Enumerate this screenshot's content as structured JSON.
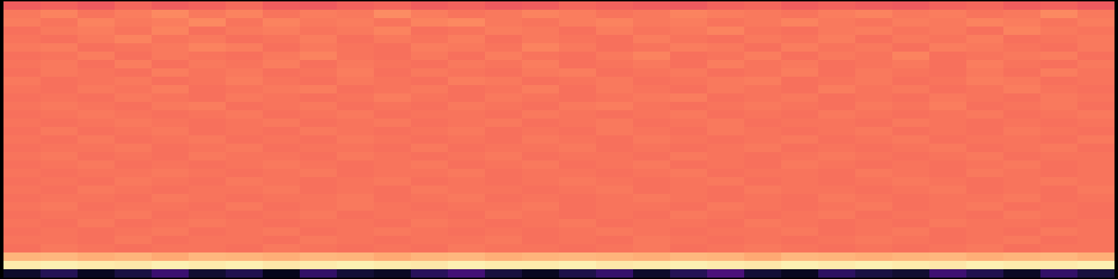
{
  "chart_data": {
    "type": "heatmap",
    "color": "magma",
    "zlim": [
      0,
      1
    ],
    "tick_labels": false,
    "cells": [
      [
        0.66,
        0.67,
        0.65,
        0.68,
        0.66,
        0.67,
        0.69,
        0.66,
        0.65,
        0.67,
        0.68,
        0.66,
        0.67,
        0.65,
        0.66,
        0.68,
        0.67,
        0.66,
        0.65,
        0.67,
        0.68,
        0.66,
        0.67,
        0.66,
        0.65,
        0.67,
        0.68,
        0.66,
        0.67,
        0.65
      ],
      [
        0.72,
        0.74,
        0.71,
        0.73,
        0.75,
        0.72,
        0.74,
        0.71,
        0.73,
        0.72,
        0.76,
        0.73,
        0.71,
        0.72,
        0.74,
        0.73,
        0.71,
        0.72,
        0.74,
        0.73,
        0.72,
        0.71,
        0.73,
        0.74,
        0.72,
        0.73,
        0.71,
        0.72,
        0.75,
        0.72
      ],
      [
        0.73,
        0.71,
        0.74,
        0.72,
        0.73,
        0.75,
        0.71,
        0.74,
        0.72,
        0.73,
        0.71,
        0.74,
        0.75,
        0.72,
        0.71,
        0.73,
        0.74,
        0.72,
        0.73,
        0.71,
        0.72,
        0.74,
        0.72,
        0.71,
        0.73,
        0.72,
        0.74,
        0.73,
        0.71,
        0.73
      ],
      [
        0.7,
        0.72,
        0.73,
        0.71,
        0.74,
        0.7,
        0.72,
        0.73,
        0.71,
        0.72,
        0.74,
        0.7,
        0.71,
        0.73,
        0.72,
        0.7,
        0.73,
        0.71,
        0.72,
        0.74,
        0.71,
        0.7,
        0.72,
        0.73,
        0.71,
        0.72,
        0.7,
        0.74,
        0.72,
        0.71
      ],
      [
        0.71,
        0.7,
        0.72,
        0.74,
        0.71,
        0.72,
        0.7,
        0.71,
        0.73,
        0.7,
        0.72,
        0.71,
        0.73,
        0.7,
        0.72,
        0.71,
        0.7,
        0.73,
        0.71,
        0.7,
        0.72,
        0.71,
        0.73,
        0.7,
        0.72,
        0.71,
        0.73,
        0.7,
        0.71,
        0.72
      ],
      [
        0.72,
        0.73,
        0.7,
        0.71,
        0.72,
        0.74,
        0.73,
        0.7,
        0.72,
        0.71,
        0.7,
        0.73,
        0.72,
        0.71,
        0.74,
        0.72,
        0.7,
        0.71,
        0.73,
        0.72,
        0.7,
        0.73,
        0.71,
        0.72,
        0.7,
        0.73,
        0.72,
        0.71,
        0.7,
        0.72
      ],
      [
        0.7,
        0.71,
        0.73,
        0.7,
        0.72,
        0.71,
        0.7,
        0.72,
        0.74,
        0.71,
        0.7,
        0.72,
        0.7,
        0.73,
        0.71,
        0.7,
        0.72,
        0.74,
        0.7,
        0.71,
        0.73,
        0.7,
        0.72,
        0.71,
        0.74,
        0.7,
        0.71,
        0.72,
        0.73,
        0.7
      ],
      [
        0.71,
        0.72,
        0.7,
        0.73,
        0.7,
        0.72,
        0.71,
        0.73,
        0.7,
        0.72,
        0.71,
        0.7,
        0.72,
        0.71,
        0.73,
        0.7,
        0.71,
        0.72,
        0.7,
        0.73,
        0.71,
        0.72,
        0.7,
        0.71,
        0.72,
        0.7,
        0.73,
        0.71,
        0.7,
        0.72
      ],
      [
        0.7,
        0.72,
        0.71,
        0.7,
        0.73,
        0.71,
        0.72,
        0.7,
        0.71,
        0.73,
        0.7,
        0.72,
        0.71,
        0.7,
        0.72,
        0.73,
        0.7,
        0.71,
        0.72,
        0.7,
        0.71,
        0.73,
        0.7,
        0.72,
        0.71,
        0.7,
        0.72,
        0.7,
        0.73,
        0.71
      ],
      [
        0.72,
        0.7,
        0.71,
        0.72,
        0.7,
        0.71,
        0.73,
        0.71,
        0.7,
        0.72,
        0.71,
        0.7,
        0.73,
        0.72,
        0.7,
        0.71,
        0.72,
        0.7,
        0.71,
        0.72,
        0.73,
        0.7,
        0.71,
        0.72,
        0.7,
        0.71,
        0.73,
        0.72,
        0.7,
        0.71
      ],
      [
        0.71,
        0.7,
        0.72,
        0.71,
        0.73,
        0.7,
        0.71,
        0.72,
        0.73,
        0.7,
        0.71,
        0.72,
        0.7,
        0.71,
        0.73,
        0.7,
        0.72,
        0.71,
        0.7,
        0.72,
        0.71,
        0.7,
        0.73,
        0.71,
        0.72,
        0.7,
        0.71,
        0.73,
        0.71,
        0.7
      ],
      [
        0.7,
        0.71,
        0.7,
        0.72,
        0.71,
        0.7,
        0.72,
        0.71,
        0.7,
        0.71,
        0.73,
        0.71,
        0.7,
        0.72,
        0.71,
        0.7,
        0.71,
        0.72,
        0.73,
        0.7,
        0.71,
        0.72,
        0.7,
        0.71,
        0.7,
        0.72,
        0.71,
        0.7,
        0.72,
        0.71
      ],
      [
        0.71,
        0.72,
        0.71,
        0.7,
        0.72,
        0.73,
        0.7,
        0.71,
        0.72,
        0.7,
        0.71,
        0.7,
        0.72,
        0.71,
        0.7,
        0.72,
        0.73,
        0.71,
        0.7,
        0.71,
        0.72,
        0.71,
        0.7,
        0.72,
        0.71,
        0.73,
        0.7,
        0.71,
        0.72,
        0.7
      ],
      [
        0.7,
        0.71,
        0.72,
        0.71,
        0.7,
        0.71,
        0.72,
        0.7,
        0.71,
        0.72,
        0.7,
        0.71,
        0.71,
        0.7,
        0.72,
        0.71,
        0.7,
        0.71,
        0.72,
        0.7,
        0.71,
        0.7,
        0.72,
        0.71,
        0.7,
        0.71,
        0.72,
        0.7,
        0.71,
        0.72
      ],
      [
        0.71,
        0.7,
        0.71,
        0.72,
        0.71,
        0.7,
        0.71,
        0.72,
        0.7,
        0.71,
        0.72,
        0.7,
        0.71,
        0.72,
        0.7,
        0.71,
        0.72,
        0.7,
        0.71,
        0.72,
        0.7,
        0.71,
        0.71,
        0.7,
        0.72,
        0.71,
        0.7,
        0.71,
        0.7,
        0.71
      ],
      [
        0.7,
        0.72,
        0.7,
        0.71,
        0.72,
        0.7,
        0.71,
        0.7,
        0.72,
        0.71,
        0.7,
        0.71,
        0.72,
        0.7,
        0.71,
        0.7,
        0.72,
        0.71,
        0.7,
        0.72,
        0.71,
        0.7,
        0.71,
        0.72,
        0.7,
        0.71,
        0.7,
        0.72,
        0.71,
        0.7
      ],
      [
        0.71,
        0.7,
        0.72,
        0.7,
        0.71,
        0.72,
        0.7,
        0.71,
        0.7,
        0.72,
        0.71,
        0.7,
        0.71,
        0.7,
        0.72,
        0.71,
        0.7,
        0.72,
        0.71,
        0.7,
        0.71,
        0.72,
        0.7,
        0.71,
        0.72,
        0.7,
        0.71,
        0.71,
        0.7,
        0.72
      ],
      [
        0.7,
        0.71,
        0.71,
        0.72,
        0.7,
        0.71,
        0.72,
        0.7,
        0.71,
        0.71,
        0.7,
        0.72,
        0.7,
        0.71,
        0.71,
        0.72,
        0.7,
        0.71,
        0.7,
        0.71,
        0.72,
        0.7,
        0.71,
        0.7,
        0.71,
        0.72,
        0.7,
        0.71,
        0.72,
        0.7
      ],
      [
        0.71,
        0.72,
        0.7,
        0.71,
        0.7,
        0.72,
        0.71,
        0.71,
        0.7,
        0.72,
        0.71,
        0.7,
        0.71,
        0.72,
        0.7,
        0.71,
        0.71,
        0.7,
        0.72,
        0.71,
        0.7,
        0.71,
        0.72,
        0.71,
        0.7,
        0.71,
        0.72,
        0.7,
        0.71,
        0.71
      ],
      [
        0.7,
        0.71,
        0.72,
        0.7,
        0.71,
        0.7,
        0.71,
        0.72,
        0.71,
        0.7,
        0.71,
        0.72,
        0.7,
        0.71,
        0.72,
        0.7,
        0.71,
        0.72,
        0.7,
        0.71,
        0.7,
        0.72,
        0.71,
        0.7,
        0.71,
        0.7,
        0.71,
        0.72,
        0.7,
        0.71
      ],
      [
        0.71,
        0.7,
        0.71,
        0.71,
        0.72,
        0.71,
        0.7,
        0.71,
        0.72,
        0.7,
        0.71,
        0.71,
        0.72,
        0.7,
        0.71,
        0.71,
        0.7,
        0.71,
        0.72,
        0.7,
        0.71,
        0.71,
        0.7,
        0.72,
        0.71,
        0.7,
        0.72,
        0.71,
        0.7,
        0.71
      ],
      [
        0.7,
        0.71,
        0.7,
        0.72,
        0.71,
        0.7,
        0.72,
        0.71,
        0.7,
        0.71,
        0.72,
        0.7,
        0.71,
        0.7,
        0.71,
        0.72,
        0.71,
        0.7,
        0.71,
        0.72,
        0.7,
        0.71,
        0.7,
        0.71,
        0.72,
        0.71,
        0.7,
        0.71,
        0.72,
        0.71
      ],
      [
        0.71,
        0.7,
        0.72,
        0.71,
        0.7,
        0.71,
        0.71,
        0.72,
        0.7,
        0.71,
        0.7,
        0.72,
        0.71,
        0.71,
        0.7,
        0.71,
        0.72,
        0.7,
        0.71,
        0.7,
        0.72,
        0.71,
        0.71,
        0.7,
        0.71,
        0.72,
        0.7,
        0.71,
        0.7,
        0.72
      ],
      [
        0.7,
        0.71,
        0.71,
        0.7,
        0.72,
        0.71,
        0.7,
        0.71,
        0.71,
        0.72,
        0.7,
        0.71,
        0.72,
        0.7,
        0.71,
        0.7,
        0.71,
        0.72,
        0.71,
        0.7,
        0.71,
        0.7,
        0.72,
        0.71,
        0.7,
        0.71,
        0.71,
        0.72,
        0.7,
        0.71
      ],
      [
        0.71,
        0.72,
        0.7,
        0.71,
        0.71,
        0.7,
        0.72,
        0.7,
        0.71,
        0.72,
        0.71,
        0.7,
        0.71,
        0.71,
        0.72,
        0.7,
        0.71,
        0.71,
        0.7,
        0.72,
        0.71,
        0.7,
        0.71,
        0.72,
        0.7,
        0.71,
        0.72,
        0.7,
        0.71,
        0.7
      ],
      [
        0.7,
        0.71,
        0.71,
        0.72,
        0.7,
        0.71,
        0.7,
        0.71,
        0.72,
        0.7,
        0.71,
        0.71,
        0.7,
        0.72,
        0.71,
        0.7,
        0.71,
        0.7,
        0.72,
        0.71,
        0.7,
        0.71,
        0.72,
        0.7,
        0.71,
        0.71,
        0.7,
        0.72,
        0.71,
        0.7
      ],
      [
        0.71,
        0.7,
        0.72,
        0.7,
        0.71,
        0.72,
        0.71,
        0.7,
        0.71,
        0.71,
        0.7,
        0.72,
        0.71,
        0.7,
        0.71,
        0.72,
        0.7,
        0.71,
        0.71,
        0.7,
        0.72,
        0.71,
        0.7,
        0.71,
        0.7,
        0.72,
        0.71,
        0.71,
        0.7,
        0.71
      ],
      [
        0.7,
        0.71,
        0.7,
        0.71,
        0.72,
        0.7,
        0.71,
        0.72,
        0.7,
        0.71,
        0.72,
        0.71,
        0.7,
        0.71,
        0.7,
        0.71,
        0.72,
        0.71,
        0.7,
        0.71,
        0.71,
        0.72,
        0.7,
        0.71,
        0.72,
        0.7,
        0.71,
        0.7,
        0.72,
        0.71
      ],
      [
        0.71,
        0.71,
        0.7,
        0.72,
        0.7,
        0.71,
        0.71,
        0.7,
        0.72,
        0.71,
        0.7,
        0.71,
        0.71,
        0.72,
        0.7,
        0.71,
        0.7,
        0.72,
        0.71,
        0.7,
        0.71,
        0.7,
        0.71,
        0.72,
        0.71,
        0.7,
        0.71,
        0.72,
        0.7,
        0.71
      ],
      [
        0.7,
        0.72,
        0.71,
        0.7,
        0.71,
        0.71,
        0.7,
        0.72,
        0.71,
        0.7,
        0.71,
        0.7,
        0.72,
        0.71,
        0.71,
        0.7,
        0.71,
        0.72,
        0.7,
        0.71,
        0.72,
        0.71,
        0.7,
        0.71,
        0.7,
        0.71,
        0.72,
        0.7,
        0.71,
        0.71
      ],
      [
        0.84,
        0.85,
        0.83,
        0.84,
        0.82,
        0.85,
        0.84,
        0.83,
        0.85,
        0.84,
        0.82,
        0.84,
        0.85,
        0.83,
        0.84,
        0.85,
        0.84,
        0.83,
        0.85,
        0.84,
        0.82,
        0.85,
        0.84,
        0.83,
        0.84,
        0.85,
        0.83,
        0.84,
        0.85,
        0.83
      ],
      [
        0.96,
        0.97,
        0.96,
        0.95,
        0.97,
        0.96,
        0.97,
        0.95,
        0.96,
        0.97,
        0.96,
        0.95,
        0.97,
        0.96,
        0.96,
        0.97,
        0.95,
        0.96,
        0.97,
        0.96,
        0.95,
        0.97,
        0.96,
        0.97,
        0.96,
        0.95,
        0.97,
        0.96,
        0.96,
        0.97
      ],
      [
        0.08,
        0.15,
        0.06,
        0.12,
        0.2,
        0.09,
        0.14,
        0.05,
        0.18,
        0.1,
        0.07,
        0.16,
        0.22,
        0.11,
        0.06,
        0.13,
        0.19,
        0.08,
        0.15,
        0.24,
        0.1,
        0.06,
        0.17,
        0.12,
        0.09,
        0.21,
        0.14,
        0.07,
        0.18,
        0.11
      ]
    ]
  }
}
